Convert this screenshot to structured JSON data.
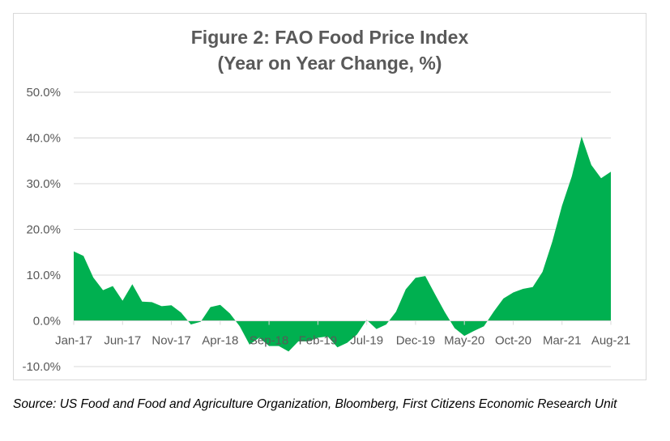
{
  "chart_data": {
    "type": "area",
    "title": "Figure 2: FAO Food Price Index",
    "subtitle": "(Year on Year Change, %)",
    "xlabel": "",
    "ylabel": "",
    "ylim": [
      -10,
      50
    ],
    "yticks": [
      "50.0%",
      "40.0%",
      "30.0%",
      "20.0%",
      "10.0%",
      "0.0%",
      "-10.0%"
    ],
    "ytick_values": [
      50,
      40,
      30,
      20,
      10,
      0,
      -10
    ],
    "xtick_labels": [
      "Jan-17",
      "Jun-17",
      "Nov-17",
      "Apr-18",
      "Sep-18",
      "Feb-19",
      "Jul-19",
      "Dec-19",
      "May-20",
      "Oct-20",
      "Mar-21",
      "Aug-21"
    ],
    "xtick_every_months": 5,
    "grid": true,
    "color": "#00b050",
    "start": "Jan-17",
    "series": [
      {
        "name": "FAO Food Price Index YoY %",
        "values": [
          15.2,
          14.2,
          9.5,
          6.7,
          7.6,
          4.4,
          8.0,
          4.2,
          4.1,
          3.2,
          3.4,
          1.8,
          -0.8,
          -0.2,
          3.0,
          3.5,
          1.6,
          -1.2,
          -5.2,
          -3.7,
          -5.5,
          -5.5,
          -6.7,
          -4.5,
          -4.5,
          -3.7,
          -3.4,
          -5.8,
          -4.8,
          -3.0,
          0.2,
          -1.8,
          -0.8,
          2.0,
          6.9,
          9.4,
          9.8,
          5.8,
          1.9,
          -1.6,
          -3.3,
          -2.2,
          -1.2,
          2.0,
          4.9,
          6.2,
          7.0,
          7.4,
          10.7,
          17.3,
          25.2,
          31.6,
          40.3,
          34.1,
          31.2,
          32.6
        ]
      }
    ]
  },
  "source": "Source: US Food and Food and Agriculture Organization, Bloomberg, First Citizens Economic Research Unit"
}
